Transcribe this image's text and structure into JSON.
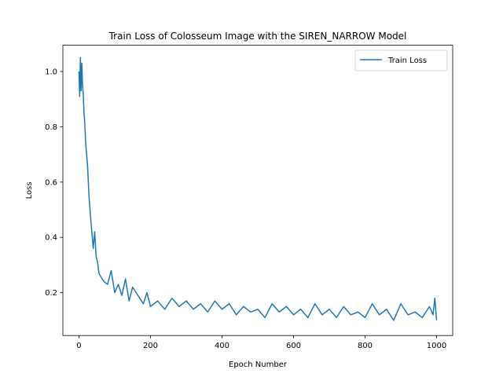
{
  "chart_data": {
    "type": "line",
    "title": "Train Loss of Colosseum Image with the SIREN_NARROW Model",
    "xlabel": "Epoch Number",
    "ylabel": "Loss",
    "xlim": [
      -45,
      1045
    ],
    "ylim": [
      0.045,
      1.095
    ],
    "xticks": [
      0,
      200,
      400,
      600,
      800,
      1000
    ],
    "yticks": [
      0.2,
      0.4,
      0.6,
      0.8,
      1.0
    ],
    "xtick_labels": [
      "0",
      "200",
      "400",
      "600",
      "800",
      "1000"
    ],
    "ytick_labels": [
      "0.2",
      "0.4",
      "0.6",
      "0.8",
      "1.0"
    ],
    "legend_position": "top-right",
    "grid": false,
    "series": [
      {
        "name": "Train Loss",
        "color": "#1f77b4",
        "x": [
          0,
          2,
          4,
          6,
          8,
          10,
          12,
          14,
          16,
          18,
          20,
          24,
          28,
          32,
          36,
          40,
          44,
          48,
          52,
          56,
          60,
          65,
          70,
          80,
          90,
          100,
          110,
          120,
          130,
          140,
          150,
          160,
          170,
          180,
          190,
          200,
          220,
          240,
          260,
          280,
          300,
          320,
          340,
          360,
          380,
          400,
          420,
          440,
          460,
          480,
          500,
          520,
          540,
          560,
          580,
          600,
          620,
          640,
          660,
          680,
          700,
          720,
          740,
          760,
          780,
          800,
          820,
          840,
          860,
          880,
          900,
          920,
          940,
          960,
          980,
          990,
          995,
          1000
        ],
        "y": [
          1.0,
          0.91,
          1.05,
          0.93,
          1.03,
          0.95,
          0.92,
          0.85,
          0.82,
          0.76,
          0.72,
          0.66,
          0.55,
          0.48,
          0.42,
          0.36,
          0.42,
          0.33,
          0.31,
          0.27,
          0.26,
          0.25,
          0.24,
          0.23,
          0.28,
          0.2,
          0.23,
          0.19,
          0.25,
          0.17,
          0.22,
          0.2,
          0.18,
          0.16,
          0.2,
          0.15,
          0.17,
          0.14,
          0.18,
          0.15,
          0.17,
          0.14,
          0.16,
          0.13,
          0.17,
          0.14,
          0.16,
          0.12,
          0.15,
          0.13,
          0.14,
          0.11,
          0.16,
          0.13,
          0.15,
          0.12,
          0.14,
          0.11,
          0.16,
          0.12,
          0.14,
          0.11,
          0.15,
          0.12,
          0.13,
          0.11,
          0.16,
          0.12,
          0.14,
          0.1,
          0.16,
          0.12,
          0.13,
          0.11,
          0.15,
          0.12,
          0.18,
          0.1
        ]
      }
    ]
  }
}
